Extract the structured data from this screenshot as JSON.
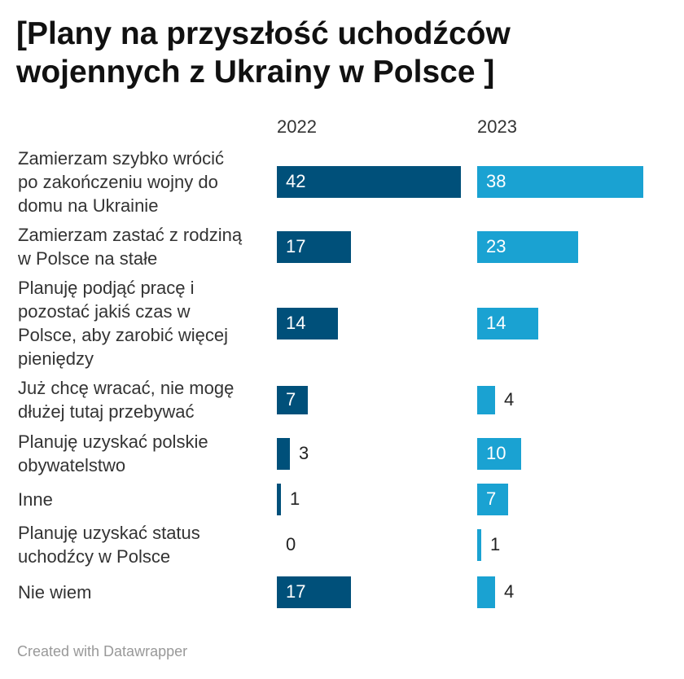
{
  "title_lines": [
    "[Plany na przyszłość uchodźców",
    "wojennych z Ukrainy w Polsce ]"
  ],
  "footer": "Created with Datawrapper",
  "chart_data": {
    "type": "bar",
    "title": "[Plany na przyszłość uchodźców wojennych z Ukrainy w Polsce ]",
    "categories": [
      "Zamierzam szybko wrócić po zakończeniu wojny do domu na Ukrainie",
      "Zamierzam zastać z rodziną w Polsce na stałe",
      "Planuję podjąć pracę i pozostać jakiś czas w Polsce, aby zarobić więcej pieniędzy",
      "Już chcę wracać, nie mogę dłużej tutaj przebywać",
      "Planuję uzyskać polskie obywatelstwo",
      "Inne",
      "Planuję uzyskać status uchodźcy w Polsce",
      "Nie wiem"
    ],
    "category_lines": [
      [
        "Zamierzam szybko wrócić",
        "po zakończeniu wojny do",
        "domu na Ukrainie"
      ],
      [
        "Zamierzam zastać z rodziną",
        "w Polsce na stałe"
      ],
      [
        "Planuję podjąć pracę i",
        "pozostać jakiś czas w",
        "Polsce, aby zarobić więcej",
        "pieniędzy"
      ],
      [
        "Już chcę wracać, nie mogę",
        "dłużej tutaj przebywać"
      ],
      [
        "Planuję uzyskać polskie",
        "obywatelstwo"
      ],
      [
        "Inne"
      ],
      [
        "Planuję uzyskać status",
        "uchodźcy w Polsce"
      ],
      [
        "Nie wiem"
      ]
    ],
    "series": [
      {
        "name": "2022",
        "values": [
          42,
          17,
          14,
          7,
          3,
          1,
          0,
          17
        ],
        "color": "#00507a"
      },
      {
        "name": "2023",
        "values": [
          38,
          23,
          14,
          4,
          10,
          7,
          1,
          4
        ],
        "color": "#1aa2d2"
      }
    ],
    "xlim": [
      0,
      42
    ],
    "grid": false,
    "legend": "none"
  }
}
